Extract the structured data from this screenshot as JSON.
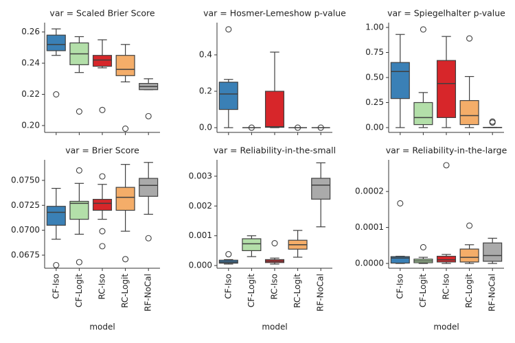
{
  "chart_data": [
    {
      "type": "box",
      "title": "var = Scaled Brier Score",
      "colors": [
        "#3a80b6",
        "#b3dfa9",
        "#d7262a",
        "#f4ad69",
        "#aaaaaa"
      ],
      "ylim": [
        0.1956,
        0.266
      ],
      "yticks": [
        {
          "value": 0.2,
          "label": "0.20"
        },
        0.22,
        0.24,
        0.26
      ],
      "boxes": [
        {
          "low": 0.245,
          "q1": 0.248,
          "median": 0.252,
          "q3": 0.258,
          "high": 0.262,
          "outliers": [
            0.22
          ]
        },
        {
          "low": 0.234,
          "q1": 0.239,
          "median": 0.246,
          "q3": 0.253,
          "high": 0.257,
          "outliers": [
            0.209
          ]
        },
        {
          "low": 0.237,
          "q1": 0.238,
          "median": 0.242,
          "q3": 0.245,
          "high": 0.255,
          "outliers": [
            0.21
          ]
        },
        {
          "low": 0.228,
          "q1": 0.232,
          "median": 0.236,
          "q3": 0.245,
          "high": 0.252,
          "outliers": [
            0.198
          ]
        },
        {
          "low": 0.223,
          "q1": 0.223,
          "median": 0.225,
          "q3": 0.227,
          "high": 0.23,
          "outliers": [
            0.206
          ]
        }
      ]
    },
    {
      "type": "box",
      "title": "var = Hosmer-Lemeshow p-value",
      "colors": [
        "#3a80b6",
        "#b3dfa9",
        "#d7262a",
        "#f4ad69",
        "#aaaaaa"
      ],
      "ylim": [
        -0.026,
        0.577
      ],
      "yticks": [
        {
          "value": 0,
          "label": "0.0"
        },
        0.2,
        0.4
      ],
      "boxes": [
        {
          "low": 0,
          "q1": 0.1,
          "median": 0.185,
          "q3": 0.25,
          "high": 0.265,
          "outliers": [
            0.54
          ]
        },
        {
          "low": 0,
          "q1": 0,
          "median": 0,
          "q3": 0,
          "high": 0,
          "outliers": [
            0
          ]
        },
        {
          "low": 0,
          "q1": 0.002,
          "median": 0.005,
          "q3": 0.2,
          "high": 0.415,
          "outliers": []
        },
        {
          "low": 0,
          "q1": 0,
          "median": 0,
          "q3": 0,
          "high": 0,
          "outliers": [
            0
          ]
        },
        {
          "low": 0,
          "q1": 0,
          "median": 0,
          "q3": 0,
          "high": 0,
          "outliers": [
            0
          ]
        }
      ]
    },
    {
      "type": "box",
      "title": "var = Spiegelhalter p-value",
      "colors": [
        "#3a80b6",
        "#b3dfa9",
        "#d7262a",
        "#f4ad69",
        "#aaaaaa"
      ],
      "ylim": [
        -0.048,
        1.048
      ],
      "yticks": [
        {
          "value": 0,
          "label": "0.00"
        },
        0.25,
        {
          "value": 0.5,
          "label": "0.50"
        },
        0.75,
        {
          "value": 1,
          "label": "1.00"
        }
      ],
      "boxes": [
        {
          "low": 0,
          "q1": 0.29,
          "median": 0.56,
          "q3": 0.65,
          "high": 0.93,
          "outliers": []
        },
        {
          "low": 0,
          "q1": 0.03,
          "median": 0.1,
          "q3": 0.25,
          "high": 0.35,
          "outliers": [
            0.98
          ]
        },
        {
          "low": 0,
          "q1": 0.1,
          "median": 0.44,
          "q3": 0.67,
          "high": 0.91,
          "outliers": []
        },
        {
          "low": 0,
          "q1": 0.03,
          "median": 0.12,
          "q3": 0.27,
          "high": 0.51,
          "outliers": [
            0.89
          ]
        },
        {
          "low": 0,
          "q1": 0,
          "median": 0.001,
          "q3": 0.002,
          "high": 0.003,
          "outliers": [
            0.06,
            0.05
          ]
        }
      ]
    },
    {
      "type": "box",
      "title": "var = Brier Score",
      "xlabel": "model",
      "categories": [
        "CF-Iso",
        "CF-Logit",
        "RC-Iso",
        "RC-Logit",
        "RF-NoCal"
      ],
      "colors": [
        "#3a80b6",
        "#b3dfa9",
        "#d7262a",
        "#f4ad69",
        "#aaaaaa"
      ],
      "ylim": [
        0.06619,
        0.07706
      ],
      "yticks": [
        0.0675,
        {
          "value": 0.07,
          "label": "0.0700"
        },
        0.0725,
        {
          "value": 0.075,
          "label": "0.0750"
        }
      ],
      "boxes": [
        {
          "low": 0.0691,
          "q1": 0.0705,
          "median": 0.0718,
          "q3": 0.0724,
          "high": 0.0742,
          "outliers": [
            0.0665
          ]
        },
        {
          "low": 0.0696,
          "q1": 0.0711,
          "median": 0.0727,
          "q3": 0.0729,
          "high": 0.0747,
          "outliers": [
            0.076,
            0.0668
          ]
        },
        {
          "low": 0.0711,
          "q1": 0.072,
          "median": 0.0727,
          "q3": 0.0731,
          "high": 0.0746,
          "outliers": [
            0.0754,
            0.0699,
            0.0684
          ]
        },
        {
          "low": 0.0699,
          "q1": 0.072,
          "median": 0.0733,
          "q3": 0.0743,
          "high": 0.0766,
          "outliers": [
            0.0671
          ]
        },
        {
          "low": 0.0716,
          "q1": 0.0734,
          "median": 0.0745,
          "q3": 0.0752,
          "high": 0.0768,
          "outliers": [
            0.0692
          ]
        }
      ]
    },
    {
      "type": "box",
      "title": "var = Reliability-in-the-small",
      "xlabel": "model",
      "categories": [
        "CF-Iso",
        "CF-Logit",
        "RC-Iso",
        "RC-Logit",
        "RF-NoCal"
      ],
      "colors": [
        "#3a80b6",
        "#b3dfa9",
        "#d7262a",
        "#f4ad69",
        "#aaaaaa"
      ],
      "ylim": [
        -9e-05,
        0.00355
      ],
      "yticks": [
        {
          "value": 0,
          "label": "0.000"
        },
        0.001,
        0.002,
        0.003
      ],
      "boxes": [
        {
          "low": 5e-05,
          "q1": 8e-05,
          "median": 0.00012,
          "q3": 0.00018,
          "high": 0.0002,
          "outliers": [
            0.00038
          ]
        },
        {
          "low": 0.0003,
          "q1": 0.0005,
          "median": 0.00073,
          "q3": 0.0009,
          "high": 0.001,
          "outliers": []
        },
        {
          "low": 5e-05,
          "q1": 0.0001,
          "median": 0.00015,
          "q3": 0.0002,
          "high": 0.00025,
          "outliers": [
            0.00075
          ]
        },
        {
          "low": 0.00028,
          "q1": 0.00055,
          "median": 0.0007,
          "q3": 0.00085,
          "high": 0.00118,
          "outliers": []
        },
        {
          "low": 0.0013,
          "q1": 0.00223,
          "median": 0.0027,
          "q3": 0.00293,
          "high": 0.00345,
          "outliers": []
        }
      ]
    },
    {
      "type": "box",
      "title": "var = Reliability-in-the-large",
      "xlabel": "model",
      "categories": [
        "CF-Iso",
        "CF-Logit",
        "RC-Iso",
        "RC-Logit",
        "RF-NoCal"
      ],
      "colors": [
        "#3a80b6",
        "#b3dfa9",
        "#d7262a",
        "#f4ad69",
        "#aaaaaa"
      ],
      "ylim": [
        -1.33e-05,
        0.000288
      ],
      "yticks": [
        {
          "value": 0,
          "label": "0.0000"
        },
        0.0001,
        0.0002
      ],
      "boxes": [
        {
          "low": 0,
          "q1": 1e-06,
          "median": 1.5e-05,
          "q3": 1.9e-05,
          "high": 2e-05,
          "outliers": [
            0.000167
          ]
        },
        {
          "low": 0,
          "q1": 2e-06,
          "median": 7e-06,
          "q3": 1.2e-05,
          "high": 1.7e-05,
          "outliers": [
            4.5e-05
          ]
        },
        {
          "low": 0,
          "q1": 4e-06,
          "median": 1e-05,
          "q3": 2e-05,
          "high": 2.5e-05,
          "outliers": [
            0.000273
          ]
        },
        {
          "low": 0,
          "q1": 4e-06,
          "median": 1.7e-05,
          "q3": 4e-05,
          "high": 5.2e-05,
          "outliers": [
            0.000105
          ]
        },
        {
          "low": 0,
          "q1": 6e-06,
          "median": 2.2e-05,
          "q3": 5.7e-05,
          "high": 7e-05,
          "outliers": []
        }
      ]
    }
  ]
}
